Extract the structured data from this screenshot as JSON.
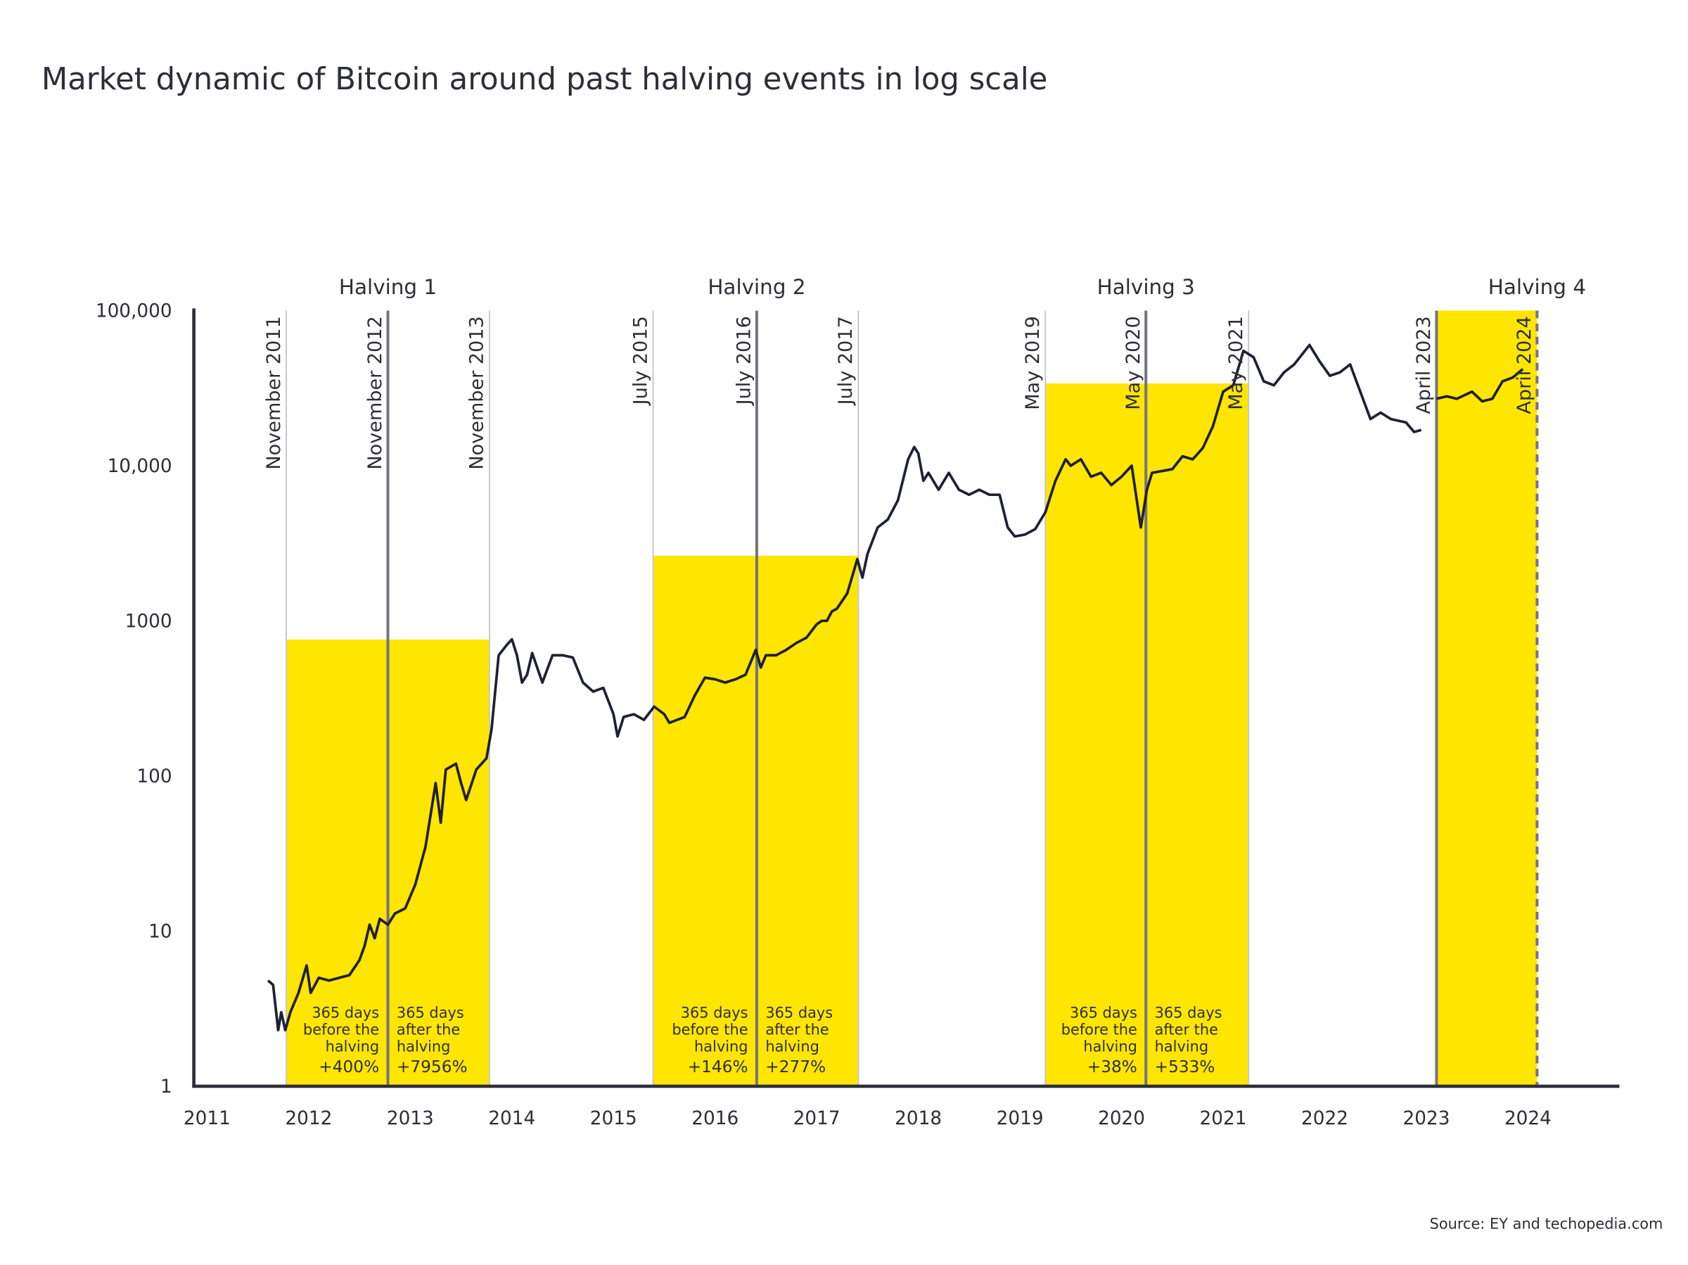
{
  "chart_data": {
    "type": "line",
    "title": "Market dynamic of Bitcoin around past halving events in log scale",
    "source": "Source: EY and techopedia.com",
    "log_y": true,
    "xlim": [
      2010.87,
      2024.9
    ],
    "xticks": [
      2011,
      2012,
      2013,
      2014,
      2015,
      2016,
      2017,
      2018,
      2019,
      2020,
      2021,
      2022,
      2023,
      2024
    ],
    "ylim": [
      1,
      100000
    ],
    "yticks": [
      1,
      10,
      100,
      1000,
      {
        "value": 10000,
        "label": "10,000"
      },
      {
        "value": 100000,
        "label": "100,000"
      }
    ],
    "box_color": "#ffe600",
    "series": [
      {
        "color": "#1f2033",
        "x": [
          2011.6,
          2011.65,
          2011.7,
          2011.73,
          2011.77,
          2011.82,
          2011.9,
          2011.98,
          2012.02,
          2012.1,
          2012.2,
          2012.3,
          2012.4,
          2012.5,
          2012.55,
          2012.6,
          2012.65,
          2012.7,
          2012.78,
          2012.85,
          2012.95,
          2013.05,
          2013.15,
          2013.25,
          2013.3,
          2013.35,
          2013.45,
          2013.5,
          2013.55,
          2013.65,
          2013.75,
          2013.8,
          2013.87,
          2013.95,
          2014.0,
          2014.05,
          2014.1,
          2014.15,
          2014.2,
          2014.3,
          2014.4,
          2014.5,
          2014.6,
          2014.7,
          2014.8,
          2014.9,
          2015.0,
          2015.04,
          2015.1,
          2015.2,
          2015.3,
          2015.4,
          2015.5,
          2015.55,
          2015.7,
          2015.8,
          2015.9,
          2016.0,
          2016.1,
          2016.2,
          2016.3,
          2016.4,
          2016.45,
          2016.5,
          2016.6,
          2016.7,
          2016.8,
          2016.9,
          2017.0,
          2017.05,
          2017.1,
          2017.15,
          2017.2,
          2017.3,
          2017.4,
          2017.45,
          2017.5,
          2017.6,
          2017.7,
          2017.8,
          2017.9,
          2017.96,
          2018.0,
          2018.05,
          2018.1,
          2018.2,
          2018.3,
          2018.4,
          2018.5,
          2018.6,
          2018.7,
          2018.8,
          2018.88,
          2018.95,
          2019.05,
          2019.15,
          2019.25,
          2019.35,
          2019.45,
          2019.5,
          2019.6,
          2019.7,
          2019.8,
          2019.9,
          2020.0,
          2020.1,
          2020.19,
          2020.25,
          2020.3,
          2020.5,
          2020.6,
          2020.7,
          2020.8,
          2020.9,
          2021.0,
          2021.1,
          2021.2,
          2021.3,
          2021.4,
          2021.5,
          2021.6,
          2021.7,
          2021.85,
          2021.95,
          2022.05,
          2022.15,
          2022.25,
          2022.35,
          2022.45,
          2022.55,
          2022.65,
          2022.8,
          2022.88,
          2022.95,
          2023.0,
          2023.1,
          2023.2,
          2023.3,
          2023.45,
          2023.55,
          2023.65,
          2023.75,
          2023.85,
          2023.95
        ],
        "values": [
          4.8,
          4.5,
          2.3,
          3.0,
          2.3,
          3,
          4,
          6,
          4,
          5,
          4.8,
          5,
          5.2,
          6.5,
          8,
          11,
          9,
          12,
          11,
          13,
          14,
          20,
          35,
          90,
          50,
          110,
          120,
          90,
          70,
          110,
          130,
          200,
          600,
          700,
          760,
          600,
          400,
          450,
          620,
          400,
          600,
          600,
          580,
          400,
          350,
          370,
          250,
          180,
          240,
          250,
          230,
          280,
          250,
          220,
          240,
          330,
          430,
          420,
          400,
          420,
          450,
          650,
          500,
          600,
          600,
          650,
          720,
          780,
          950,
          1000,
          1000,
          1150,
          1200,
          1500,
          2500,
          1900,
          2700,
          4000,
          4500,
          6000,
          11000,
          13200,
          12000,
          8000,
          9000,
          7000,
          9000,
          7000,
          6500,
          7000,
          6500,
          6500,
          4000,
          3500,
          3600,
          3900,
          5000,
          8000,
          11000,
          10000,
          11000,
          8500,
          9000,
          7500,
          8500,
          10000,
          4000,
          7000,
          9000,
          9500,
          11500,
          11000,
          13000,
          18000,
          30000,
          33000,
          55000,
          50000,
          35000,
          33000,
          40000,
          45000,
          60000,
          47000,
          38000,
          40000,
          45000,
          30000,
          20000,
          22000,
          20000,
          19000,
          16500,
          17000,
          null,
          27000,
          28000,
          27000,
          30000,
          26000,
          27000,
          35000,
          37000,
          42000
        ]
      }
    ],
    "boxes": [
      {
        "x": [
          2011.78,
          2013.78
        ],
        "top": 757
      },
      {
        "x": [
          2015.39,
          2017.41
        ],
        "top": 2630
      },
      {
        "x": [
          2019.25,
          2021.25
        ],
        "top": 33900
      },
      {
        "x": [
          2023.1,
          2024.09
        ],
        "top": 100000
      }
    ],
    "markers": [
      {
        "x": 2011.78,
        "label": "November 2011",
        "style": "light"
      },
      {
        "x": 2012.78,
        "label": "November 2012",
        "style": "dark",
        "halving": "Halving 1",
        "before": [
          "365 days",
          "before the",
          "halving"
        ],
        "before_change": "+400%",
        "after": [
          "365 days",
          "after the",
          "halving"
        ],
        "after_change": "+7956%"
      },
      {
        "x": 2013.78,
        "label": "November 2013",
        "style": "light"
      },
      {
        "x": 2015.39,
        "label": "July 2015",
        "style": "light"
      },
      {
        "x": 2016.41,
        "label": "July 2016",
        "style": "dark",
        "halving": "Halving 2",
        "before": [
          "365 days",
          "before the",
          "halving"
        ],
        "before_change": "+146%",
        "after": [
          "365 days",
          "after the",
          "halving"
        ],
        "after_change": "+277%"
      },
      {
        "x": 2017.41,
        "label": "July 2017",
        "style": "light"
      },
      {
        "x": 2019.25,
        "label": "May 2019",
        "style": "light"
      },
      {
        "x": 2020.24,
        "label": "May 2020",
        "style": "dark",
        "halving": "Halving 3",
        "before": [
          "365 days",
          "before the",
          "halving"
        ],
        "before_change": "+38%",
        "after": [
          "365 days",
          "after the",
          "halving"
        ],
        "after_change": "+533%"
      },
      {
        "x": 2021.25,
        "label": "May 2021",
        "style": "light"
      },
      {
        "x": 2023.1,
        "label": "April 2023",
        "style": "dark"
      },
      {
        "x": 2024.09,
        "label": "April 2024",
        "style": "dashed",
        "halving": "Halving 4"
      }
    ]
  }
}
